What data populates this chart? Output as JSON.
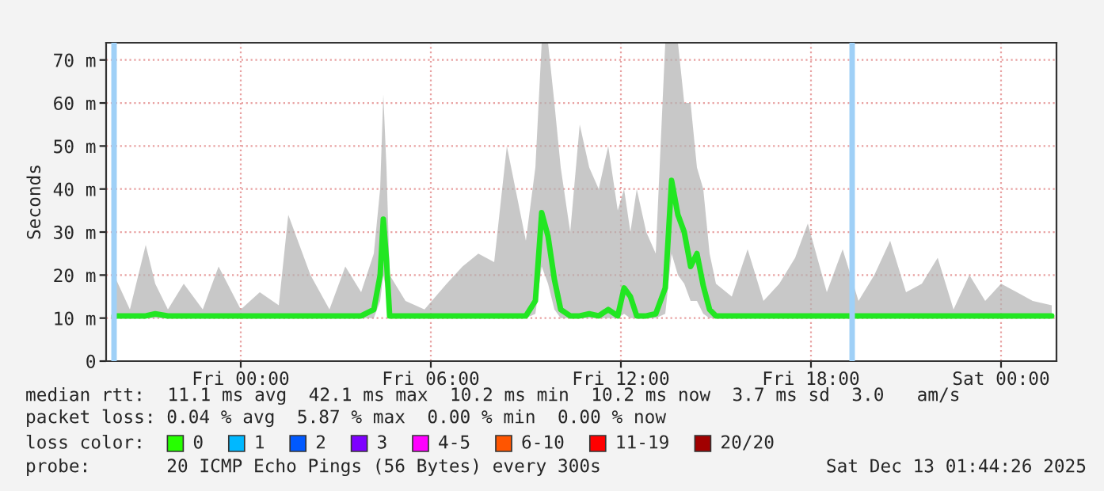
{
  "chart_data": {
    "type": "line",
    "ylabel": "Seconds",
    "x": [
      "2025-12-11T20:00",
      "2025-12-11T20:30",
      "2025-12-11T21:00",
      "2025-12-11T21:18",
      "2025-12-11T21:42",
      "2025-12-11T22:12",
      "2025-12-11T22:48",
      "2025-12-11T23:18",
      "2025-12-12T00:00",
      "2025-12-12T00:36",
      "2025-12-12T01:12",
      "2025-12-12T01:30",
      "2025-12-12T02:12",
      "2025-12-12T02:48",
      "2025-12-12T03:18",
      "2025-12-12T03:48",
      "2025-12-12T04:12",
      "2025-12-12T04:24",
      "2025-12-12T04:30",
      "2025-12-12T04:36",
      "2025-12-12T04:42",
      "2025-12-12T05:12",
      "2025-12-12T05:48",
      "2025-12-12T06:30",
      "2025-12-12T07:00",
      "2025-12-12T07:30",
      "2025-12-12T08:00",
      "2025-12-12T08:24",
      "2025-12-12T09:00",
      "2025-12-12T09:18",
      "2025-12-12T09:30",
      "2025-12-12T09:42",
      "2025-12-12T09:54",
      "2025-12-12T10:06",
      "2025-12-12T10:24",
      "2025-12-12T10:42",
      "2025-12-12T11:00",
      "2025-12-12T11:18",
      "2025-12-12T11:36",
      "2025-12-12T11:54",
      "2025-12-12T12:06",
      "2025-12-12T12:18",
      "2025-12-12T12:30",
      "2025-12-12T12:48",
      "2025-12-12T13:06",
      "2025-12-12T13:24",
      "2025-12-12T13:36",
      "2025-12-12T13:48",
      "2025-12-12T14:00",
      "2025-12-12T14:12",
      "2025-12-12T14:24",
      "2025-12-12T14:36",
      "2025-12-12T14:48",
      "2025-12-12T15:00",
      "2025-12-12T15:30",
      "2025-12-12T16:00",
      "2025-12-12T16:30",
      "2025-12-12T17:00",
      "2025-12-12T17:30",
      "2025-12-12T17:54",
      "2025-12-12T18:30",
      "2025-12-12T19:00",
      "2025-12-12T19:30",
      "2025-12-12T20:00",
      "2025-12-12T20:30",
      "2025-12-12T21:00",
      "2025-12-12T21:30",
      "2025-12-12T22:00",
      "2025-12-12T22:30",
      "2025-12-12T23:00",
      "2025-12-12T23:30",
      "2025-12-13T00:00",
      "2025-12-13T00:30",
      "2025-12-13T01:00",
      "2025-12-13T01:36"
    ],
    "series": [
      {
        "name": "median rtt:",
        "color": "#22e622",
        "values": [
          10.5,
          10.5,
          10.5,
          11,
          10.5,
          10.5,
          10.5,
          10.5,
          10.5,
          10.5,
          10.5,
          10.5,
          10.5,
          10.5,
          10.5,
          10.5,
          12,
          20,
          33,
          23.5,
          10.5,
          10.5,
          10.5,
          10.5,
          10.5,
          10.5,
          10.5,
          10.5,
          10.5,
          14,
          34.5,
          29,
          19,
          12,
          10.5,
          10.5,
          11,
          10.5,
          12,
          10.5,
          17,
          15,
          10.5,
          10.5,
          11,
          17,
          42,
          34,
          30,
          22,
          25,
          17.5,
          12,
          10.5,
          10.5,
          10.5,
          10.5,
          10.5,
          10.5,
          10.5,
          10.5,
          10.5,
          10.5,
          10.5,
          10.5,
          10.5,
          10.5,
          10.5,
          10.5,
          10.5,
          10.5,
          10.5,
          10.5,
          10.5,
          10.5
        ],
        "lower": [
          10,
          10,
          10,
          10,
          10,
          10,
          10,
          10,
          10,
          10,
          10,
          10,
          10,
          10,
          10,
          10,
          10,
          14,
          20,
          16,
          10,
          10,
          10,
          10,
          10,
          10,
          10,
          10,
          10,
          11,
          22,
          18,
          12,
          10,
          10,
          10,
          10,
          10,
          10,
          10,
          11,
          10,
          10,
          10,
          10,
          11,
          25,
          20,
          18,
          14,
          14,
          11,
          10,
          10,
          10,
          10,
          10,
          10,
          10,
          10,
          10,
          10,
          10,
          10,
          10,
          10,
          10,
          10,
          10,
          10,
          10,
          10,
          10,
          10,
          10
        ],
        "upper": [
          20,
          12,
          27,
          18,
          12,
          18,
          12,
          22,
          12,
          16,
          13,
          34,
          20,
          12,
          22,
          16,
          25,
          40,
          62,
          45,
          20,
          14,
          12,
          18,
          22,
          25,
          23,
          50,
          28,
          45,
          74,
          74,
          60,
          45,
          30,
          55,
          45,
          40,
          50,
          35,
          40,
          30,
          40,
          30,
          25,
          74,
          74,
          74,
          60,
          60,
          45,
          40,
          25,
          18,
          15,
          26,
          14,
          18,
          24,
          32,
          16,
          26,
          14,
          20,
          28,
          16,
          18,
          24,
          12,
          20,
          14,
          18,
          16,
          14,
          13
        ]
      }
    ],
    "xlim": [
      "2025-12-11T19:45",
      "2025-12-13T01:45"
    ],
    "ylim": [
      0,
      74
    ],
    "xticks": [
      {
        "value": "2025-12-12T00:00",
        "label": "Fri 00:00"
      },
      {
        "value": "2025-12-12T06:00",
        "label": "Fri 06:00"
      },
      {
        "value": "2025-12-12T12:00",
        "label": "Fri 12:00"
      },
      {
        "value": "2025-12-12T18:00",
        "label": "Fri 18:00"
      },
      {
        "value": "2025-12-13T00:00",
        "label": "Sat 00:00"
      }
    ],
    "yticks": [
      0,
      {
        "value": 10,
        "label": "10 m"
      },
      {
        "value": 20,
        "label": "20 m"
      },
      {
        "value": 30,
        "label": "30 m"
      },
      {
        "value": 40,
        "label": "40 m"
      },
      {
        "value": 50,
        "label": "50 m"
      },
      {
        "value": 60,
        "label": "60 m"
      },
      {
        "value": 70,
        "label": "70 m"
      }
    ],
    "ref_lines": [
      {
        "axis": "x",
        "value": "2025-12-11T20:00",
        "color": "#9fd0f7"
      },
      {
        "axis": "x",
        "value": "2025-12-12T19:18",
        "color": "#9fd0f7"
      }
    ],
    "grid": true,
    "legend": false,
    "marker": "none",
    "line_style": "solid",
    "annotations": [
      "11.1 ms avg  42.1 ms max  10.2 ms min  10.2 ms now  3.7 ms sd  3.0   am/s",
      "packet loss: 0.04 % avg  5.87 % max  0.00 % min  0.00 % now",
      "loss color:",
      "0",
      "1",
      "2",
      "3",
      "4-5",
      "6-10",
      "11-19",
      "20/20",
      "probe:       20 ICMP Echo Pings (56 Bytes) every 300s",
      "Sat Dec 13 01:44:26 2025"
    ]
  }
}
